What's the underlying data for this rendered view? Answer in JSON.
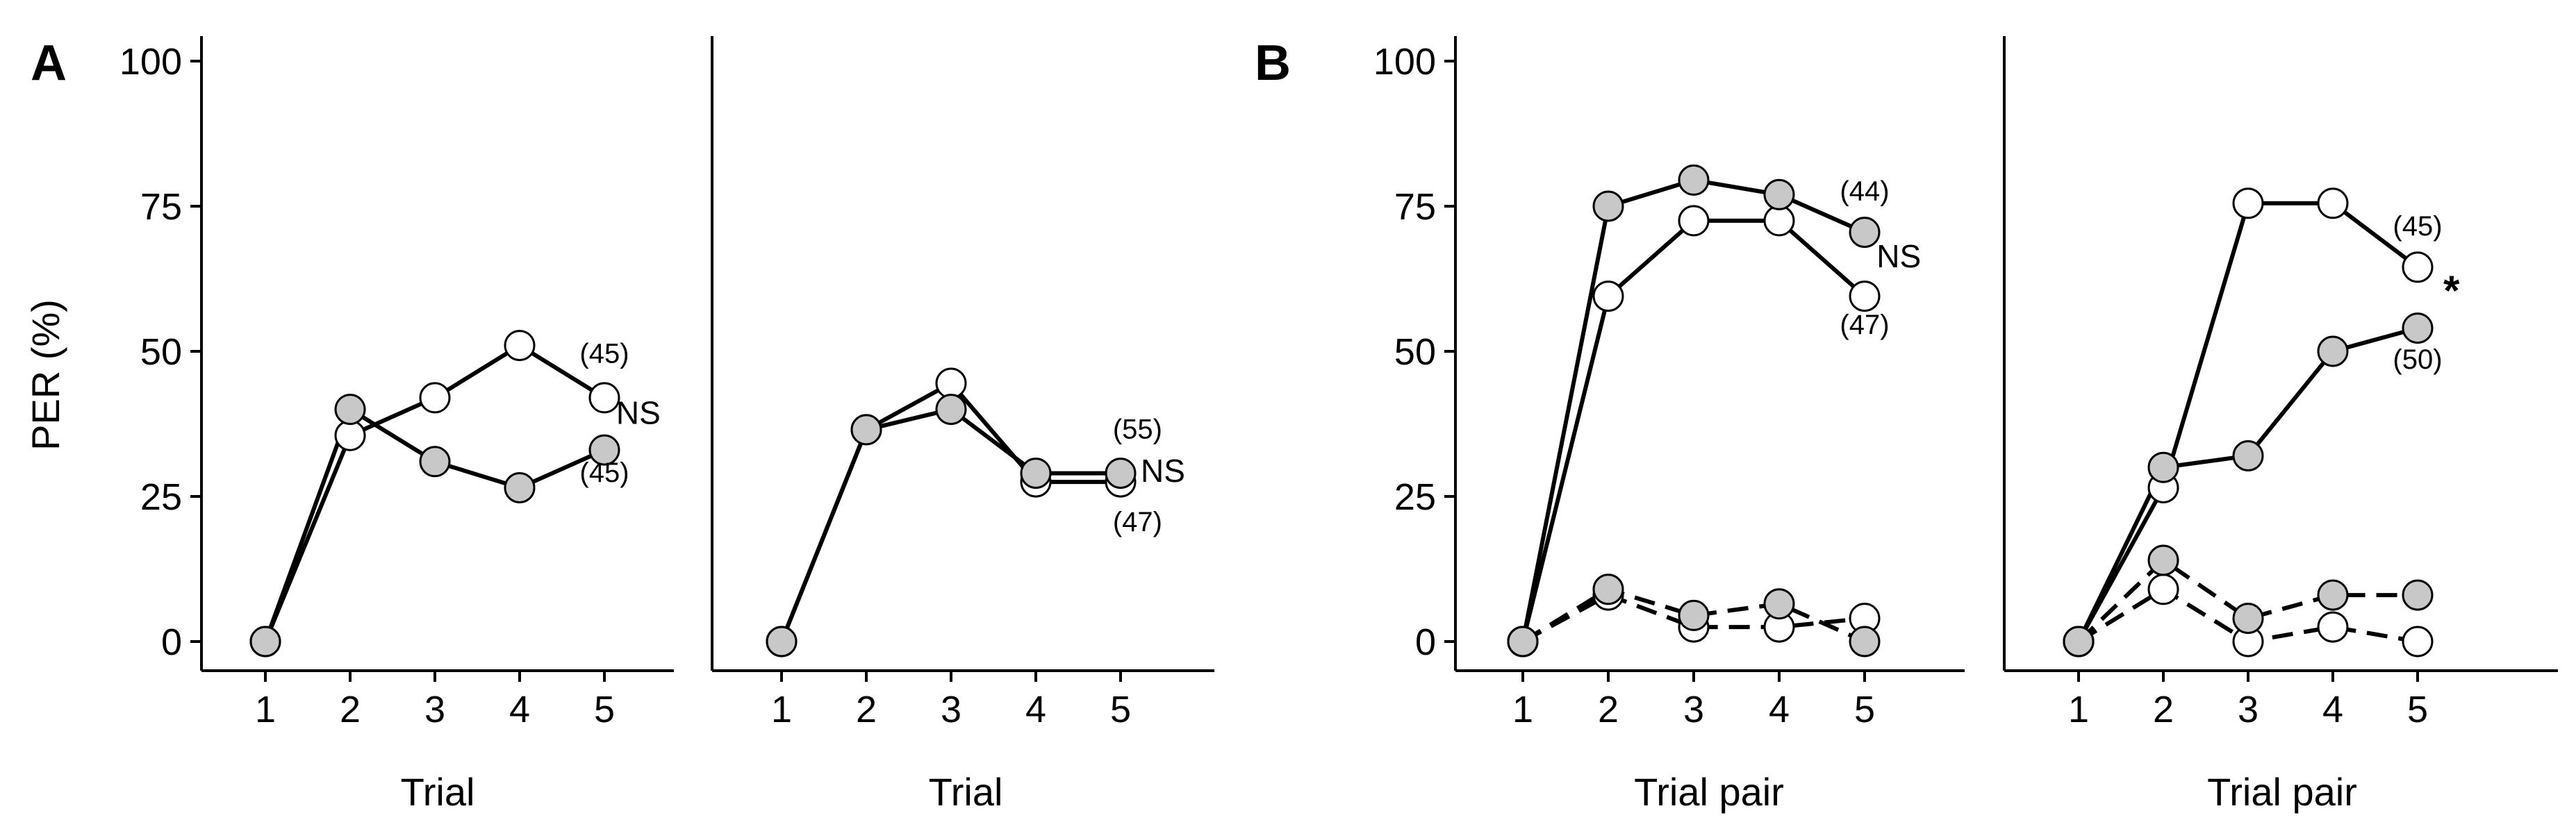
{
  "figure": {
    "ylabel": "PER (%)",
    "letters": [
      "A",
      "B"
    ]
  },
  "chart_data": [
    {
      "type": "line",
      "xlabel": "Trial",
      "ylabel": "PER (%)",
      "x": [
        1,
        2,
        3,
        4,
        5
      ],
      "ylim": [
        0,
        100
      ],
      "yticks": [
        0,
        25,
        50,
        75,
        100
      ],
      "series": [
        {
          "name": "white",
          "color": "#ffffff",
          "dashed": false,
          "values": [
            0,
            35.5,
            42,
            51,
            42
          ]
        },
        {
          "name": "grey",
          "color": "#c8c8c8",
          "dashed": false,
          "values": [
            0,
            40,
            31,
            26.5,
            33
          ]
        }
      ],
      "annotations": [
        {
          "text": "(45)",
          "x": 5,
          "y": 48,
          "type": "ann"
        },
        {
          "text": "NS",
          "x": 5.4,
          "y": 37.5,
          "type": "ns"
        },
        {
          "text": "(45)",
          "x": 5,
          "y": 27.5,
          "type": "ann"
        }
      ]
    },
    {
      "type": "line",
      "xlabel": "Trial",
      "x": [
        1,
        2,
        3,
        4,
        5
      ],
      "ylim": [
        0,
        100
      ],
      "series": [
        {
          "name": "white",
          "color": "#ffffff",
          "dashed": false,
          "values": [
            0,
            36.5,
            44.5,
            27.5,
            27.5
          ]
        },
        {
          "name": "grey",
          "color": "#c8c8c8",
          "dashed": false,
          "values": [
            0,
            36.5,
            40,
            29,
            29
          ]
        }
      ],
      "annotations": [
        {
          "text": "(55)",
          "x": 5.2,
          "y": 35,
          "type": "ann"
        },
        {
          "text": "NS",
          "x": 5.5,
          "y": 27.5,
          "type": "ns"
        },
        {
          "text": "(47)",
          "x": 5.2,
          "y": 19,
          "type": "ann"
        }
      ]
    },
    {
      "type": "line",
      "xlabel": "Trial pair",
      "ylabel": "PER (%)",
      "x": [
        1,
        2,
        3,
        4,
        5
      ],
      "ylim": [
        0,
        100
      ],
      "yticks": [
        0,
        25,
        50,
        75,
        100
      ],
      "series": [
        {
          "name": "white",
          "color": "#ffffff",
          "dashed": false,
          "values": [
            0,
            59.5,
            72.5,
            72.5,
            59.5
          ]
        },
        {
          "name": "grey",
          "color": "#c8c8c8",
          "dashed": false,
          "values": [
            0,
            75,
            79.5,
            77,
            70.5
          ]
        },
        {
          "name": "white-dashed",
          "color": "#ffffff",
          "dashed": true,
          "values": [
            0,
            8,
            2.5,
            2.5,
            4
          ]
        },
        {
          "name": "grey-dashed",
          "color": "#c8c8c8",
          "dashed": true,
          "values": [
            0,
            9,
            4.5,
            6.5,
            0
          ]
        }
      ],
      "annotations": [
        {
          "text": "(44)",
          "x": 5,
          "y": 76,
          "type": "ann"
        },
        {
          "text": "NS",
          "x": 5.4,
          "y": 64.5,
          "type": "ns"
        },
        {
          "text": "(47)",
          "x": 5,
          "y": 53,
          "type": "ann"
        }
      ]
    },
    {
      "type": "line",
      "xlabel": "Trial pair",
      "x": [
        1,
        2,
        3,
        4,
        5
      ],
      "ylim": [
        0,
        100
      ],
      "series": [
        {
          "name": "white",
          "color": "#ffffff",
          "dashed": false,
          "values": [
            0,
            26.5,
            75.5,
            75.5,
            64.5
          ]
        },
        {
          "name": "grey",
          "color": "#c8c8c8",
          "dashed": false,
          "values": [
            0,
            30,
            32,
            50,
            54
          ]
        },
        {
          "name": "white-dashed",
          "color": "#ffffff",
          "dashed": true,
          "values": [
            0,
            9,
            0,
            2.5,
            0
          ]
        },
        {
          "name": "grey-dashed",
          "color": "#c8c8c8",
          "dashed": true,
          "values": [
            0,
            14,
            4,
            8,
            8
          ]
        }
      ],
      "annotations": [
        {
          "text": "(45)",
          "x": 5,
          "y": 70,
          "type": "ann"
        },
        {
          "text": "*",
          "x": 5.4,
          "y": 58,
          "type": "star"
        },
        {
          "text": "(50)",
          "x": 5,
          "y": 47,
          "type": "ann"
        }
      ]
    }
  ]
}
